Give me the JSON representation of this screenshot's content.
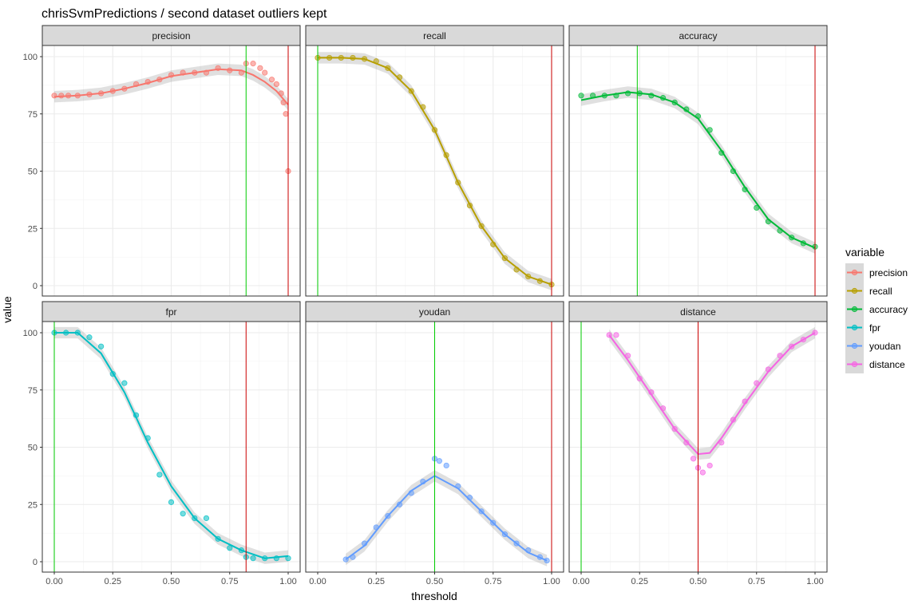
{
  "chart_data": {
    "type": "scatter",
    "title": "chrisSvmPredictions / second dataset outliers kept",
    "xlabel": "threshold",
    "ylabel": "value",
    "xlim": [
      0,
      1
    ],
    "ylim": [
      0,
      100
    ],
    "x_ticks": [
      "0.00",
      "0.25",
      "0.50",
      "0.75",
      "1.00"
    ],
    "y_ticks": [
      "0",
      "25",
      "50",
      "75",
      "100"
    ],
    "legend": {
      "title": "variable",
      "position": "right"
    },
    "panels": [
      {
        "name": "precision",
        "color": "#F8766D",
        "vline_green": 0.82,
        "vline_red": 1.0,
        "points": [
          [
            0.0,
            83
          ],
          [
            0.03,
            83
          ],
          [
            0.06,
            83
          ],
          [
            0.1,
            83
          ],
          [
            0.15,
            83.5
          ],
          [
            0.2,
            84
          ],
          [
            0.25,
            85
          ],
          [
            0.3,
            86
          ],
          [
            0.35,
            88
          ],
          [
            0.4,
            89
          ],
          [
            0.45,
            90
          ],
          [
            0.5,
            92
          ],
          [
            0.55,
            93
          ],
          [
            0.6,
            93
          ],
          [
            0.65,
            93
          ],
          [
            0.7,
            95
          ],
          [
            0.75,
            94
          ],
          [
            0.8,
            93
          ],
          [
            0.82,
            97
          ],
          [
            0.85,
            97
          ],
          [
            0.88,
            95
          ],
          [
            0.9,
            93
          ],
          [
            0.93,
            90
          ],
          [
            0.95,
            88
          ],
          [
            0.97,
            84
          ],
          [
            0.98,
            80
          ],
          [
            0.99,
            75
          ],
          [
            1.0,
            50
          ]
        ],
        "smooth": [
          [
            0.0,
            82.5
          ],
          [
            0.1,
            83
          ],
          [
            0.2,
            84
          ],
          [
            0.3,
            86
          ],
          [
            0.4,
            88.5
          ],
          [
            0.5,
            91.5
          ],
          [
            0.6,
            93
          ],
          [
            0.7,
            94.5
          ],
          [
            0.8,
            94
          ],
          [
            0.85,
            92
          ],
          [
            0.9,
            89
          ],
          [
            0.95,
            85
          ],
          [
            1.0,
            79
          ]
        ]
      },
      {
        "name": "recall",
        "color": "#B79F00",
        "vline_green": 0.0,
        "vline_red": 1.0,
        "points": [
          [
            0.0,
            99.5
          ],
          [
            0.05,
            99.5
          ],
          [
            0.1,
            99.5
          ],
          [
            0.15,
            99.5
          ],
          [
            0.2,
            99
          ],
          [
            0.25,
            98
          ],
          [
            0.3,
            95
          ],
          [
            0.35,
            91
          ],
          [
            0.4,
            85
          ],
          [
            0.45,
            78
          ],
          [
            0.5,
            68
          ],
          [
            0.55,
            57
          ],
          [
            0.6,
            45
          ],
          [
            0.65,
            35
          ],
          [
            0.7,
            26
          ],
          [
            0.75,
            18
          ],
          [
            0.8,
            12
          ],
          [
            0.85,
            7
          ],
          [
            0.9,
            4
          ],
          [
            0.95,
            2
          ],
          [
            1.0,
            0.5
          ]
        ],
        "smooth": [
          [
            0.0,
            99.5
          ],
          [
            0.1,
            99.5
          ],
          [
            0.2,
            99
          ],
          [
            0.3,
            95
          ],
          [
            0.4,
            85
          ],
          [
            0.5,
            68
          ],
          [
            0.6,
            45
          ],
          [
            0.7,
            26
          ],
          [
            0.8,
            12
          ],
          [
            0.9,
            4
          ],
          [
            1.0,
            0.5
          ]
        ]
      },
      {
        "name": "accuracy",
        "color": "#00BA38",
        "vline_green": 0.24,
        "vline_red": 1.0,
        "points": [
          [
            0.0,
            83
          ],
          [
            0.05,
            83
          ],
          [
            0.1,
            83
          ],
          [
            0.15,
            83
          ],
          [
            0.2,
            84
          ],
          [
            0.25,
            84
          ],
          [
            0.3,
            83
          ],
          [
            0.35,
            82
          ],
          [
            0.4,
            80
          ],
          [
            0.45,
            77
          ],
          [
            0.5,
            74
          ],
          [
            0.55,
            68
          ],
          [
            0.6,
            58
          ],
          [
            0.65,
            50
          ],
          [
            0.7,
            42
          ],
          [
            0.75,
            34
          ],
          [
            0.8,
            28
          ],
          [
            0.85,
            24
          ],
          [
            0.9,
            21
          ],
          [
            0.95,
            18.5
          ],
          [
            1.0,
            17
          ]
        ],
        "smooth": [
          [
            0.0,
            81
          ],
          [
            0.1,
            83
          ],
          [
            0.2,
            84.5
          ],
          [
            0.3,
            83.5
          ],
          [
            0.4,
            80
          ],
          [
            0.5,
            73
          ],
          [
            0.6,
            59
          ],
          [
            0.7,
            43
          ],
          [
            0.8,
            29
          ],
          [
            0.9,
            21
          ],
          [
            1.0,
            16.5
          ]
        ]
      },
      {
        "name": "fpr",
        "color": "#00BFC4",
        "vline_green": 0.0,
        "vline_red": 0.82,
        "points": [
          [
            0.0,
            100
          ],
          [
            0.05,
            100
          ],
          [
            0.1,
            100
          ],
          [
            0.15,
            98
          ],
          [
            0.2,
            94
          ],
          [
            0.25,
            82
          ],
          [
            0.3,
            78
          ],
          [
            0.35,
            64
          ],
          [
            0.4,
            54
          ],
          [
            0.45,
            38
          ],
          [
            0.5,
            26
          ],
          [
            0.55,
            21
          ],
          [
            0.6,
            19
          ],
          [
            0.65,
            19
          ],
          [
            0.7,
            10
          ],
          [
            0.75,
            6
          ],
          [
            0.8,
            5
          ],
          [
            0.82,
            2
          ],
          [
            0.85,
            1.5
          ],
          [
            0.9,
            1.5
          ],
          [
            0.95,
            1.5
          ],
          [
            1.0,
            1.5
          ]
        ],
        "smooth": [
          [
            0.0,
            100
          ],
          [
            0.1,
            100
          ],
          [
            0.2,
            91
          ],
          [
            0.3,
            74
          ],
          [
            0.4,
            52
          ],
          [
            0.5,
            33
          ],
          [
            0.6,
            19
          ],
          [
            0.7,
            10
          ],
          [
            0.8,
            5
          ],
          [
            0.9,
            1.5
          ],
          [
            1.0,
            2.5
          ]
        ]
      },
      {
        "name": "youdan",
        "color": "#619CFF",
        "vline_green": 0.5,
        "vline_red": 1.0,
        "points": [
          [
            0.12,
            1
          ],
          [
            0.15,
            2
          ],
          [
            0.2,
            8
          ],
          [
            0.25,
            15
          ],
          [
            0.3,
            20
          ],
          [
            0.35,
            25
          ],
          [
            0.4,
            30
          ],
          [
            0.45,
            35
          ],
          [
            0.5,
            45
          ],
          [
            0.52,
            44
          ],
          [
            0.55,
            42
          ],
          [
            0.6,
            33
          ],
          [
            0.65,
            28
          ],
          [
            0.7,
            22
          ],
          [
            0.75,
            17
          ],
          [
            0.8,
            12
          ],
          [
            0.85,
            8
          ],
          [
            0.9,
            5
          ],
          [
            0.95,
            2
          ],
          [
            0.98,
            0.5
          ]
        ],
        "smooth": [
          [
            0.12,
            1
          ],
          [
            0.2,
            7
          ],
          [
            0.3,
            20
          ],
          [
            0.4,
            31
          ],
          [
            0.5,
            37.5
          ],
          [
            0.6,
            32
          ],
          [
            0.7,
            22
          ],
          [
            0.8,
            12
          ],
          [
            0.9,
            4
          ],
          [
            0.98,
            0.5
          ]
        ]
      },
      {
        "name": "distance",
        "color": "#F564E3",
        "vline_green": 0.0,
        "vline_red": 0.5,
        "points": [
          [
            0.12,
            99
          ],
          [
            0.15,
            99
          ],
          [
            0.2,
            90
          ],
          [
            0.25,
            80
          ],
          [
            0.3,
            74
          ],
          [
            0.35,
            67
          ],
          [
            0.4,
            58
          ],
          [
            0.45,
            52
          ],
          [
            0.48,
            45
          ],
          [
            0.5,
            41
          ],
          [
            0.52,
            39
          ],
          [
            0.55,
            42
          ],
          [
            0.6,
            52
          ],
          [
            0.65,
            62
          ],
          [
            0.7,
            70
          ],
          [
            0.75,
            78
          ],
          [
            0.8,
            84
          ],
          [
            0.85,
            90
          ],
          [
            0.9,
            94
          ],
          [
            0.95,
            97
          ],
          [
            1.0,
            100
          ]
        ],
        "smooth": [
          [
            0.12,
            99
          ],
          [
            0.2,
            88
          ],
          [
            0.3,
            73
          ],
          [
            0.4,
            58
          ],
          [
            0.5,
            47
          ],
          [
            0.55,
            47.5
          ],
          [
            0.6,
            54
          ],
          [
            0.7,
            69
          ],
          [
            0.8,
            83
          ],
          [
            0.9,
            94
          ],
          [
            1.0,
            100
          ]
        ]
      }
    ]
  }
}
